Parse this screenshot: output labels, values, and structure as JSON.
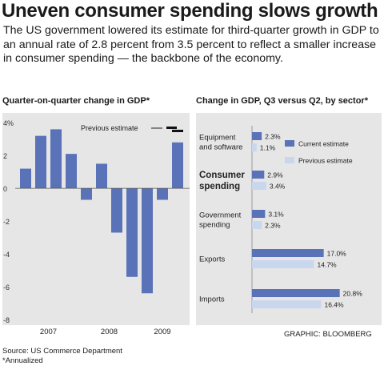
{
  "headline": "Uneven consumer spending slows growth",
  "deck": "The US government lowered its estimate for third-quarter growth in GDP to an annual rate of 2.8 percent from 3.5 percent to reflect a smaller increase in consumer spending — the backbone of the economy.",
  "colors": {
    "current": "#5a72b8",
    "previous": "#c9d7ee",
    "panel": "#e6e6e6"
  },
  "chart_data": [
    {
      "type": "bar",
      "title": "Quarter-on-quarter change in GDP*",
      "categories": [
        "2007 Q1",
        "2007 Q2",
        "2007 Q3",
        "2007 Q4",
        "2008 Q1",
        "2008 Q2",
        "2008 Q3",
        "2008 Q4",
        "2009 Q1",
        "2009 Q2",
        "2009 Q3"
      ],
      "year_labels": [
        "2007",
        "2008",
        "2009"
      ],
      "values": [
        1.2,
        3.2,
        3.6,
        2.1,
        -0.7,
        1.5,
        -2.7,
        -5.4,
        -6.4,
        -0.7,
        2.8
      ],
      "previous_estimate": {
        "label": "Previous estimate",
        "value": 3.5
      },
      "yticks": [
        "4%",
        "2",
        "0",
        "-2",
        "-4",
        "-6",
        "-8"
      ],
      "ylim": [
        -8,
        4.5
      ]
    },
    {
      "type": "bar",
      "orientation": "horizontal",
      "title": "Change in GDP, Q3 versus Q2, by sector*",
      "categories": [
        {
          "lines": [
            "Equipment",
            "and software"
          ],
          "bold": false
        },
        {
          "lines": [
            "Consumer",
            "spending"
          ],
          "bold": true
        },
        {
          "lines": [
            "Government",
            "spending"
          ],
          "bold": false
        },
        {
          "lines": [
            "Exports"
          ],
          "bold": false
        },
        {
          "lines": [
            "Imports"
          ],
          "bold": false
        }
      ],
      "series": [
        {
          "name": "Current estimate",
          "values": [
            2.3,
            2.9,
            3.1,
            17.0,
            20.8
          ],
          "labels": [
            "2.3%",
            "2.9%",
            "3.1%",
            "17.0%",
            "20.8%"
          ]
        },
        {
          "name": "Previous estimate",
          "values": [
            1.1,
            3.4,
            2.3,
            14.7,
            16.4
          ],
          "labels": [
            "1.1%",
            "3.4%",
            "2.3%",
            "14.7%",
            "16.4%"
          ]
        }
      ],
      "xlim": [
        0,
        22
      ]
    }
  ],
  "footer": {
    "source": "Source: US Commerce Department",
    "footnote": "*Annualized",
    "credit": "GRAPHIC: BLOOMBERG"
  }
}
